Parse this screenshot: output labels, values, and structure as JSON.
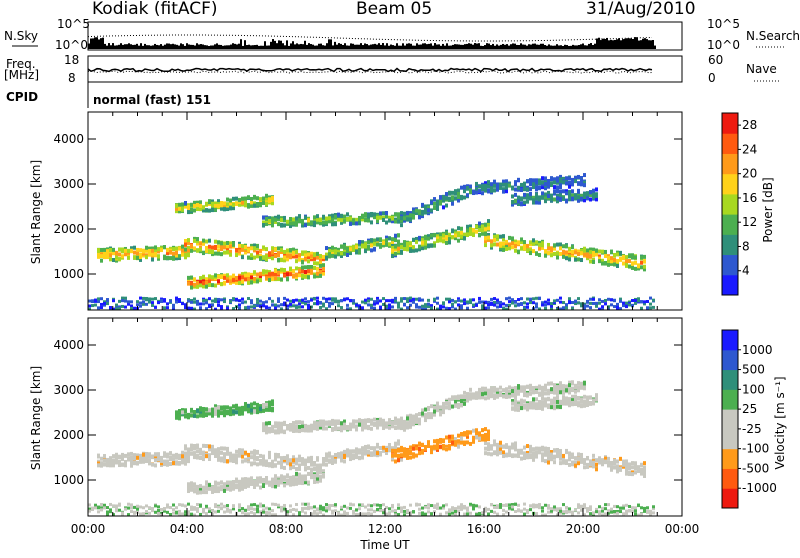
{
  "header": {
    "radar": "Kodiak (fitACF)",
    "beam": "Beam 05",
    "date": "31/Aug/2010"
  },
  "status": {
    "nsky_label": "N.Sky",
    "nsky_ticks": [
      "10^5",
      "10^0"
    ],
    "nsearch_label": "N.Search",
    "nsearch_ticks": [
      "10^5",
      "10^0"
    ],
    "freq_label_1": "Freq.",
    "freq_label_2": "[MHz]",
    "freq_ticks": [
      "18",
      "8"
    ],
    "nave_label": "Nave",
    "nave_ticks": [
      "60",
      "0"
    ],
    "cpid_label": "CPID",
    "cpid_value": "normal (fast) 151"
  },
  "colors": {
    "power": [
      "#1a1aff",
      "#2e58d0",
      "#2f8f7a",
      "#4caf50",
      "#a8d820",
      "#ffd21a",
      "#ff9a1a",
      "#ff5a10",
      "#ee1a10"
    ],
    "velocity": [
      "#ee1a10",
      "#ff5a10",
      "#ff9a1a",
      "#c8c8c0",
      "#c8c8c0",
      "#4caf50",
      "#2f8f7a",
      "#2e58d0",
      "#1a1aff"
    ]
  },
  "chart_data": [
    {
      "type": "heatmap",
      "title": "",
      "xlabel": "",
      "ylabel": "Slant Range [km]",
      "x_ticks": [
        "00:00",
        "04:00",
        "08:00",
        "12:00",
        "16:00",
        "20:00",
        "00:00"
      ],
      "y_ticks": [
        "1000",
        "2000",
        "3000",
        "4000"
      ],
      "ylim": [
        200,
        4600
      ],
      "colorbar_label": "Power [dB]",
      "colorbar_ticks": [
        "4",
        "8",
        "12",
        "16",
        "20",
        "24",
        "28"
      ],
      "colorbar_range": [
        0,
        30
      ]
    },
    {
      "type": "heatmap",
      "title": "",
      "xlabel": "Time UT",
      "ylabel": "Slant Range [km]",
      "x_ticks": [
        "00:00",
        "04:00",
        "08:00",
        "12:00",
        "16:00",
        "20:00",
        "00:00"
      ],
      "y_ticks": [
        "1000",
        "2000",
        "3000",
        "4000"
      ],
      "ylim": [
        200,
        4600
      ],
      "colorbar_label": "Velocity [m s⁻¹]",
      "colorbar_ticks": [
        "1000",
        "500",
        "100",
        "25",
        "-25",
        "-100",
        "-500",
        "-1000"
      ]
    }
  ]
}
